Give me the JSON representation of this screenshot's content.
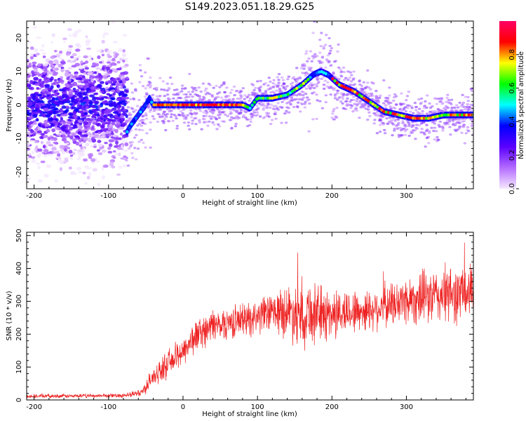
{
  "figure": {
    "title": "S149.2023.051.18.29.G25"
  },
  "chart_data": [
    {
      "type": "heatmap",
      "xlabel": "Height of straight line (km)",
      "ylabel": "Frequency (Hz)",
      "xlim": [
        -210,
        390
      ],
      "ylim": [
        -25,
        25
      ],
      "xticks": [
        -200,
        -100,
        0,
        100,
        200,
        300
      ],
      "yticks": [
        -20,
        -10,
        0,
        10,
        20
      ],
      "colorbar": {
        "label": "Normalized spectral amplitude",
        "range": [
          0,
          1
        ],
        "ticks": [
          "0.0",
          "0.2",
          "0.4",
          "0.6",
          "0.8"
        ],
        "tick_values": [
          0.0,
          0.2,
          0.4,
          0.6,
          0.8
        ],
        "colormap": [
          "#f5e9ff",
          "#b46cff",
          "#5a00ff",
          "#0000ff",
          "#00ffff",
          "#00ff00",
          "#ffff00",
          "#ff0000",
          "#ff0066"
        ]
      },
      "ridge": {
        "x": [
          -75,
          -70,
          -60,
          -50,
          -45,
          -40,
          -20,
          0,
          20,
          40,
          60,
          80,
          90,
          100,
          120,
          140,
          160,
          175,
          185,
          195,
          210,
          230,
          250,
          270,
          290,
          310,
          330,
          350,
          370,
          390
        ],
        "y": [
          -8,
          -6,
          -3,
          0,
          2,
          0,
          0,
          0,
          0,
          0,
          0,
          0,
          -1,
          2,
          2,
          3,
          6,
          9,
          10,
          9,
          6,
          4,
          1,
          -2,
          -3,
          -4,
          -4,
          -3,
          -3,
          -3
        ]
      },
      "noise_region": {
        "x_range": [
          -210,
          -75
        ],
        "y_center": 0
      }
    },
    {
      "type": "line",
      "xlabel": "Height of straight line (km)",
      "ylabel": "SNR (10 * v/v)",
      "xlim": [
        -210,
        390
      ],
      "ylim": [
        0,
        510
      ],
      "xticks": [
        -200,
        -100,
        0,
        100,
        200,
        300
      ],
      "yticks": [
        0,
        100,
        200,
        300,
        400,
        500
      ],
      "color": "#ee2222",
      "series": [
        {
          "x": [
            -210,
            -150,
            -100,
            -70,
            -55,
            -50,
            -40,
            -20,
            0,
            20,
            40,
            60,
            80,
            100,
            120,
            140,
            160,
            180,
            200,
            220,
            240,
            260,
            280,
            300,
            320,
            340,
            360,
            380,
            390
          ],
          "y": [
            12,
            12,
            13,
            15,
            25,
            40,
            70,
            110,
            150,
            200,
            225,
            235,
            245,
            255,
            265,
            270,
            265,
            262,
            260,
            268,
            270,
            280,
            290,
            305,
            310,
            315,
            320,
            325,
            325
          ],
          "spread": [
            6,
            6,
            6,
            8,
            12,
            20,
            30,
            40,
            45,
            50,
            50,
            50,
            50,
            55,
            60,
            80,
            110,
            90,
            80,
            70,
            65,
            65,
            70,
            75,
            80,
            85,
            90,
            90,
            90
          ]
        }
      ]
    }
  ]
}
